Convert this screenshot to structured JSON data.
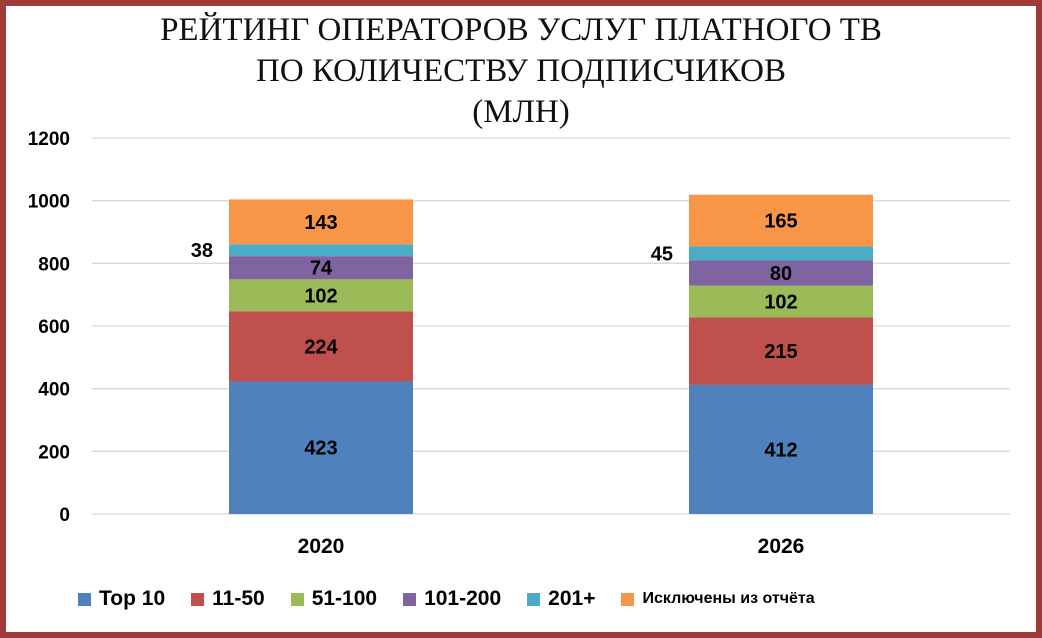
{
  "chart_data": {
    "type": "bar",
    "stacked": true,
    "title_lines": [
      "РЕЙТИНГ ОПЕРАТОРОВ УСЛУГ ПЛАТНОГО ТВ",
      "ПО КОЛИЧЕСТВУ ПОДПИСЧИКОВ",
      "(МЛН)"
    ],
    "categories": [
      "2020",
      "2026"
    ],
    "series": [
      {
        "name": "Top 10",
        "color": "#4f81bd",
        "values": [
          423,
          412
        ],
        "labels": [
          "423",
          "412"
        ]
      },
      {
        "name": "11-50",
        "color": "#c0504d",
        "values": [
          224,
          215
        ],
        "labels": [
          "224",
          "215"
        ]
      },
      {
        "name": "51-100",
        "color": "#9bbb59",
        "values": [
          102,
          102
        ],
        "labels": [
          "102",
          "102"
        ]
      },
      {
        "name": "101-200",
        "color": "#8064a2",
        "values": [
          74,
          80
        ],
        "labels": [
          "74",
          "80"
        ]
      },
      {
        "name": "201+",
        "color": "#4bacc6",
        "values": [
          38,
          45
        ],
        "labels": [
          "38",
          "45"
        ]
      },
      {
        "name": "Исключены из отчёта",
        "color": "#f79646",
        "values": [
          143,
          165
        ],
        "labels": [
          "143",
          "165"
        ]
      }
    ],
    "ylim": [
      0,
      1200
    ],
    "yticks": [
      "0",
      "200",
      "400",
      "600",
      "800",
      "1000",
      "1200"
    ],
    "grid": true,
    "legend_position": "bottom"
  },
  "colors": {
    "frame": "#9e3a37",
    "grid": "#d9d9d9"
  }
}
